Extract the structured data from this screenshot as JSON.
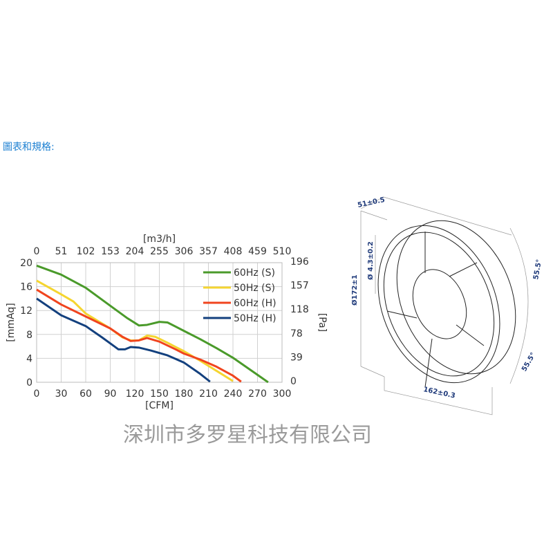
{
  "heading": "圖表和規格:",
  "watermark": "深圳市多罗星科技有限公司",
  "chart_data": {
    "type": "line",
    "xlabel": "[CFM]",
    "ylabel": "[mmAq]",
    "x2label": "[m3/h]",
    "y2label": "[Pa]",
    "xlim": [
      0,
      300
    ],
    "ylim": [
      0,
      20
    ],
    "grid": true,
    "legend": "top-right",
    "x_ticks": [
      "0",
      "30",
      "60",
      "90",
      "120",
      "150",
      "180",
      "210",
      "240",
      "270",
      "300"
    ],
    "y_ticks": [
      "0",
      "4",
      "8",
      "12",
      "16",
      "20"
    ],
    "x2_ticks": [
      "0",
      "51",
      "102",
      "153",
      "204",
      "255",
      "306",
      "357",
      "408",
      "459",
      "510"
    ],
    "y2_ticks": [
      "0",
      "39",
      "78",
      "118",
      "157",
      "196"
    ],
    "series": [
      {
        "name": "60Hz (S)",
        "color": "#4a9a2a",
        "points": [
          [
            0,
            19.5
          ],
          [
            30,
            18
          ],
          [
            60,
            15.8
          ],
          [
            90,
            12.8
          ],
          [
            110,
            10.8
          ],
          [
            125,
            9.5
          ],
          [
            135,
            9.6
          ],
          [
            150,
            10.1
          ],
          [
            160,
            10
          ],
          [
            180,
            8.6
          ],
          [
            200,
            7.2
          ],
          [
            220,
            5.7
          ],
          [
            240,
            4.1
          ],
          [
            260,
            2.2
          ],
          [
            283,
            0
          ]
        ]
      },
      {
        "name": "50Hz (S)",
        "color": "#f5d530",
        "points": [
          [
            0,
            17
          ],
          [
            30,
            14.7
          ],
          [
            45,
            13.5
          ],
          [
            60,
            11.5
          ],
          [
            90,
            9
          ],
          [
            105,
            7.5
          ],
          [
            115,
            7
          ],
          [
            125,
            7
          ],
          [
            135,
            7.8
          ],
          [
            145,
            7.6
          ],
          [
            160,
            6.6
          ],
          [
            180,
            5.2
          ],
          [
            200,
            3.6
          ],
          [
            220,
            1.9
          ],
          [
            240,
            0.2
          ]
        ]
      },
      {
        "name": "60Hz (H)",
        "color": "#f0441e",
        "points": [
          [
            0,
            15.5
          ],
          [
            30,
            13
          ],
          [
            60,
            11
          ],
          [
            90,
            9
          ],
          [
            105,
            7.6
          ],
          [
            115,
            6.9
          ],
          [
            125,
            7
          ],
          [
            135,
            7.4
          ],
          [
            150,
            6.8
          ],
          [
            170,
            5.5
          ],
          [
            180,
            4.8
          ],
          [
            200,
            3.8
          ],
          [
            220,
            2.6
          ],
          [
            240,
            1.1
          ],
          [
            250,
            0.1
          ]
        ]
      },
      {
        "name": "50Hz (H)",
        "color": "#13407e",
        "points": [
          [
            0,
            14
          ],
          [
            30,
            11.2
          ],
          [
            60,
            9.4
          ],
          [
            80,
            7.5
          ],
          [
            95,
            6
          ],
          [
            100,
            5.5
          ],
          [
            108,
            5.5
          ],
          [
            115,
            5.9
          ],
          [
            125,
            5.8
          ],
          [
            140,
            5.3
          ],
          [
            160,
            4.5
          ],
          [
            180,
            3.3
          ],
          [
            200,
            1.4
          ],
          [
            212,
            0.1
          ]
        ]
      }
    ]
  },
  "drawing": {
    "dimensions": [
      "51±0.5",
      "Ø172±1",
      "Ø 4.3±0.2",
      "162±0.3",
      "55.5°",
      "55.5°"
    ]
  }
}
